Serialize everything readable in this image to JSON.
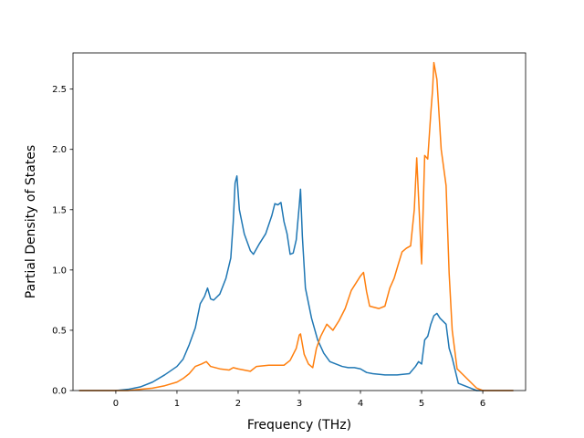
{
  "chart_data": {
    "type": "line",
    "title": "",
    "xlabel": "Frequency (THz)",
    "ylabel": "Partial Density of States",
    "xlim": [
      -0.7,
      6.7
    ],
    "ylim": [
      0,
      2.8
    ],
    "xticks": [
      0,
      1,
      2,
      3,
      4,
      5,
      6
    ],
    "xtick_labels": [
      "0",
      "1",
      "2",
      "3",
      "4",
      "5",
      "6"
    ],
    "yticks": [
      0.0,
      0.5,
      1.0,
      1.5,
      2.0,
      2.5
    ],
    "ytick_labels": [
      "0.0",
      "0.5",
      "1.0",
      "1.5",
      "2.0",
      "2.5"
    ],
    "grid": false,
    "series": [
      {
        "color": "#1f77b4",
        "points": [
          [
            -0.6,
            0.0
          ],
          [
            0.0,
            0.0
          ],
          [
            0.2,
            0.01
          ],
          [
            0.4,
            0.03
          ],
          [
            0.6,
            0.07
          ],
          [
            0.8,
            0.13
          ],
          [
            1.0,
            0.2
          ],
          [
            1.1,
            0.26
          ],
          [
            1.2,
            0.38
          ],
          [
            1.3,
            0.52
          ],
          [
            1.38,
            0.72
          ],
          [
            1.45,
            0.78
          ],
          [
            1.5,
            0.85
          ],
          [
            1.55,
            0.76
          ],
          [
            1.6,
            0.75
          ],
          [
            1.7,
            0.8
          ],
          [
            1.8,
            0.93
          ],
          [
            1.88,
            1.1
          ],
          [
            1.92,
            1.4
          ],
          [
            1.95,
            1.72
          ],
          [
            1.98,
            1.78
          ],
          [
            2.02,
            1.5
          ],
          [
            2.1,
            1.3
          ],
          [
            2.2,
            1.16
          ],
          [
            2.25,
            1.13
          ],
          [
            2.35,
            1.22
          ],
          [
            2.45,
            1.3
          ],
          [
            2.55,
            1.45
          ],
          [
            2.6,
            1.55
          ],
          [
            2.65,
            1.54
          ],
          [
            2.7,
            1.56
          ],
          [
            2.75,
            1.4
          ],
          [
            2.8,
            1.3
          ],
          [
            2.85,
            1.13
          ],
          [
            2.9,
            1.14
          ],
          [
            2.95,
            1.25
          ],
          [
            3.0,
            1.54
          ],
          [
            3.02,
            1.67
          ],
          [
            3.05,
            1.28
          ],
          [
            3.1,
            0.85
          ],
          [
            3.2,
            0.6
          ],
          [
            3.3,
            0.42
          ],
          [
            3.4,
            0.31
          ],
          [
            3.5,
            0.24
          ],
          [
            3.6,
            0.22
          ],
          [
            3.7,
            0.2
          ],
          [
            3.8,
            0.19
          ],
          [
            3.9,
            0.19
          ],
          [
            4.0,
            0.18
          ],
          [
            4.1,
            0.15
          ],
          [
            4.2,
            0.14
          ],
          [
            4.4,
            0.13
          ],
          [
            4.6,
            0.13
          ],
          [
            4.8,
            0.14
          ],
          [
            4.9,
            0.2
          ],
          [
            4.95,
            0.24
          ],
          [
            5.0,
            0.22
          ],
          [
            5.05,
            0.42
          ],
          [
            5.1,
            0.45
          ],
          [
            5.15,
            0.55
          ],
          [
            5.2,
            0.62
          ],
          [
            5.25,
            0.64
          ],
          [
            5.3,
            0.6
          ],
          [
            5.4,
            0.55
          ],
          [
            5.45,
            0.35
          ],
          [
            5.5,
            0.27
          ],
          [
            5.6,
            0.06
          ],
          [
            5.8,
            0.02
          ],
          [
            5.9,
            0.0
          ],
          [
            6.5,
            0.0
          ]
        ]
      },
      {
        "color": "#ff7f0e",
        "points": [
          [
            -0.6,
            0.0
          ],
          [
            0.2,
            0.0
          ],
          [
            0.4,
            0.01
          ],
          [
            0.6,
            0.02
          ],
          [
            0.8,
            0.04
          ],
          [
            1.0,
            0.07
          ],
          [
            1.1,
            0.1
          ],
          [
            1.2,
            0.14
          ],
          [
            1.3,
            0.2
          ],
          [
            1.4,
            0.22
          ],
          [
            1.48,
            0.24
          ],
          [
            1.55,
            0.2
          ],
          [
            1.7,
            0.18
          ],
          [
            1.85,
            0.17
          ],
          [
            1.92,
            0.19
          ],
          [
            2.0,
            0.18
          ],
          [
            2.2,
            0.16
          ],
          [
            2.3,
            0.2
          ],
          [
            2.5,
            0.21
          ],
          [
            2.6,
            0.21
          ],
          [
            2.75,
            0.21
          ],
          [
            2.85,
            0.25
          ],
          [
            2.95,
            0.35
          ],
          [
            3.0,
            0.46
          ],
          [
            3.02,
            0.47
          ],
          [
            3.08,
            0.3
          ],
          [
            3.15,
            0.22
          ],
          [
            3.22,
            0.19
          ],
          [
            3.28,
            0.35
          ],
          [
            3.35,
            0.45
          ],
          [
            3.45,
            0.55
          ],
          [
            3.55,
            0.5
          ],
          [
            3.65,
            0.58
          ],
          [
            3.75,
            0.68
          ],
          [
            3.85,
            0.83
          ],
          [
            4.0,
            0.95
          ],
          [
            4.05,
            0.98
          ],
          [
            4.1,
            0.82
          ],
          [
            4.15,
            0.7
          ],
          [
            4.3,
            0.68
          ],
          [
            4.4,
            0.7
          ],
          [
            4.48,
            0.85
          ],
          [
            4.55,
            0.93
          ],
          [
            4.62,
            1.05
          ],
          [
            4.68,
            1.15
          ],
          [
            4.75,
            1.18
          ],
          [
            4.82,
            1.2
          ],
          [
            4.88,
            1.5
          ],
          [
            4.92,
            1.93
          ],
          [
            4.95,
            1.6
          ],
          [
            5.0,
            1.05
          ],
          [
            5.05,
            1.95
          ],
          [
            5.1,
            1.92
          ],
          [
            5.15,
            2.3
          ],
          [
            5.18,
            2.5
          ],
          [
            5.2,
            2.72
          ],
          [
            5.25,
            2.58
          ],
          [
            5.32,
            2.0
          ],
          [
            5.4,
            1.7
          ],
          [
            5.45,
            0.97
          ],
          [
            5.5,
            0.5
          ],
          [
            5.58,
            0.18
          ],
          [
            5.7,
            0.12
          ],
          [
            5.9,
            0.02
          ],
          [
            6.0,
            0.0
          ],
          [
            6.5,
            0.0
          ]
        ]
      }
    ]
  }
}
